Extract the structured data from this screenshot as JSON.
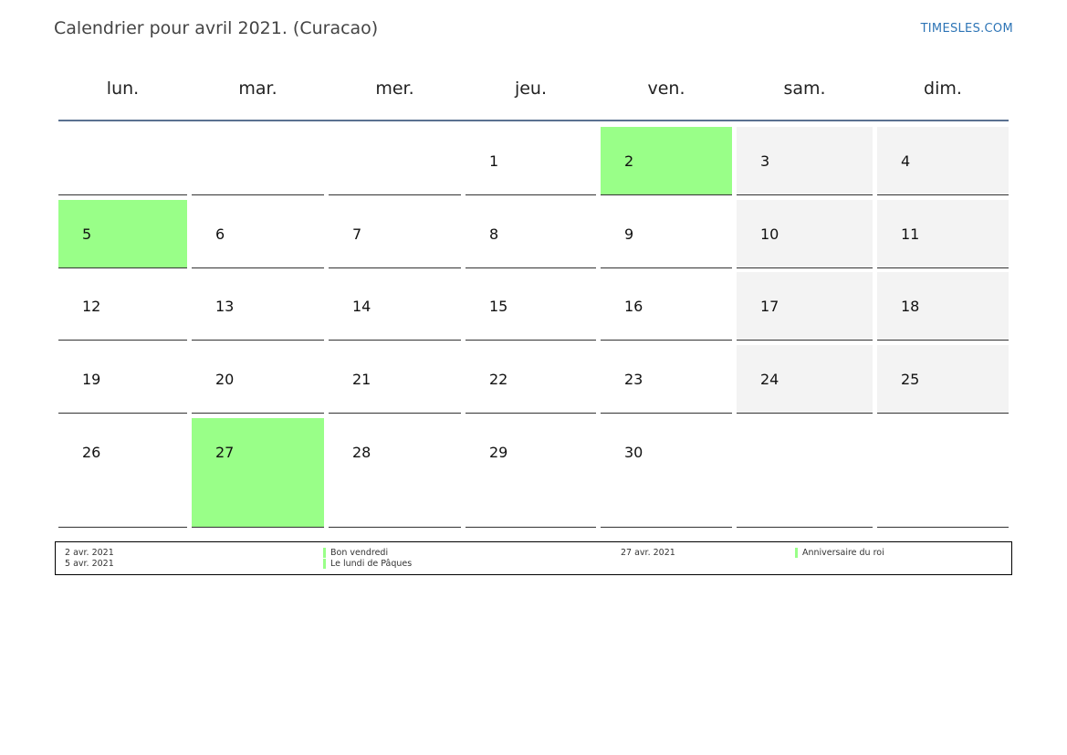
{
  "title": "Calendrier pour avril 2021. (Curacao)",
  "brand": "TIMESLES.COM",
  "colors": {
    "holiday": "#99ff88",
    "weekend": "#f3f3f3",
    "header_rule": "#5a7191"
  },
  "weekdays": [
    "lun.",
    "mar.",
    "mer.",
    "jeu.",
    "ven.",
    "sam.",
    "dim."
  ],
  "weeks": [
    [
      null,
      null,
      null,
      "1",
      "2",
      "3",
      "4"
    ],
    [
      "5",
      "6",
      "7",
      "8",
      "9",
      "10",
      "11"
    ],
    [
      "12",
      "13",
      "14",
      "15",
      "16",
      "17",
      "18"
    ],
    [
      "19",
      "20",
      "21",
      "22",
      "23",
      "24",
      "25"
    ],
    [
      "26",
      "27",
      "28",
      "29",
      "30",
      null,
      null
    ]
  ],
  "holiday_days": [
    "2",
    "5",
    "27"
  ],
  "legend": [
    {
      "date": "2 avr. 2021",
      "name": "Bon vendredi"
    },
    {
      "date": "5 avr. 2021",
      "name": "Le lundi de Pâques"
    },
    {
      "date": "27 avr. 2021",
      "name": "Anniversaire du roi"
    }
  ]
}
